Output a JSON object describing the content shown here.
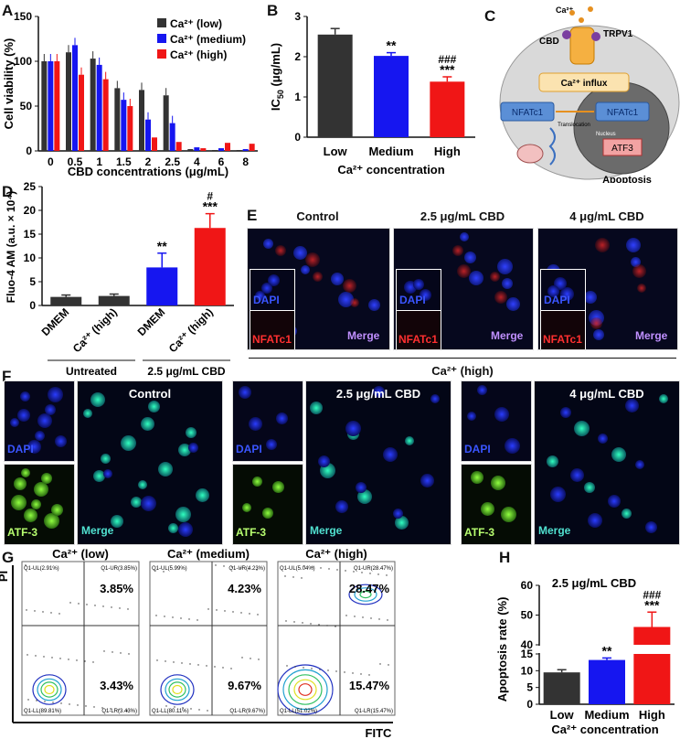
{
  "panel_labels": {
    "A": "A",
    "B": "B",
    "C": "C",
    "D": "D",
    "E": "E",
    "F": "F",
    "G": "G",
    "H": "H"
  },
  "colors": {
    "low": "#333333",
    "medium": "#1616f0",
    "high": "#f01616"
  },
  "chart_data": [
    {
      "id": "A",
      "type": "bar",
      "ylabel": "Cell viability (%)",
      "xlabel": "CBD concentrations (μg/mL)",
      "ylim": [
        0,
        150
      ],
      "yticks": [
        0,
        50,
        100,
        150
      ],
      "categories": [
        "0",
        "0.5",
        "1",
        "1.5",
        "2",
        "2.5",
        "4",
        "6",
        "8"
      ],
      "legend": [
        "Ca²⁺ (low)",
        "Ca²⁺ (medium)",
        "Ca²⁺ (high)"
      ],
      "series": [
        {
          "name": "Ca2+ (low)",
          "values": [
            100,
            110,
            103,
            70,
            68,
            62,
            2,
            1,
            1
          ]
        },
        {
          "name": "Ca2+ (medium)",
          "values": [
            100,
            118,
            96,
            57,
            35,
            31,
            4,
            3,
            2
          ]
        },
        {
          "name": "Ca2+ (high)",
          "values": [
            100,
            85,
            80,
            50,
            15,
            10,
            3,
            9,
            8
          ]
        }
      ]
    },
    {
      "id": "B",
      "type": "bar",
      "ylabel_main": "IC",
      "ylabel_sub": "50",
      "ylabel_unit": " (μg/mL)",
      "xlabel": "Ca²⁺ concentration",
      "ylim": [
        0,
        3
      ],
      "yticks": [
        0,
        1,
        2,
        3
      ],
      "categories": [
        "Low",
        "Medium",
        "High"
      ],
      "values": [
        2.55,
        2.02,
        1.38
      ],
      "errors": [
        0.15,
        0.08,
        0.12
      ],
      "sig": [
        "",
        "**",
        "***"
      ],
      "sig2": [
        "",
        "",
        "###"
      ]
    },
    {
      "id": "D",
      "type": "bar",
      "ylabel": "Fluo-4 AM (a.u. × 10⁴)",
      "ylim": [
        0,
        25
      ],
      "yticks": [
        0,
        5,
        10,
        15,
        20,
        25
      ],
      "categories": [
        "DMEM",
        "Ca²⁺ (high)",
        "DMEM",
        "Ca²⁺ (high)"
      ],
      "values": [
        1.8,
        2.0,
        8.0,
        16.3
      ],
      "errors": [
        0.4,
        0.4,
        3.0,
        3.0
      ],
      "sig": [
        "",
        "",
        "**",
        "***"
      ],
      "sig2": [
        "",
        "",
        "",
        "#"
      ],
      "groups": [
        "Untreated",
        "2.5 μg/mL CBD"
      ]
    },
    {
      "id": "H",
      "type": "bar",
      "ylabel": "Apoptosis rate (%)",
      "xlabel": "Ca²⁺ concentration",
      "annotation": "2.5 μg/mL CBD",
      "yticks": [
        0,
        5,
        10,
        15,
        40,
        50,
        60
      ],
      "categories": [
        "Low",
        "Medium",
        "High"
      ],
      "values": [
        9.5,
        13.2,
        46
      ],
      "errors": [
        0.8,
        0.6,
        5
      ],
      "sig": [
        "",
        "**",
        "***"
      ],
      "sig2": [
        "",
        "",
        "###"
      ]
    }
  ],
  "schematic": {
    "ca": "Ca²⁺",
    "cbd": "CBD",
    "trpv1": "TRPV1",
    "influx": "Ca²⁺ influx",
    "nfatc1_a": "NFATc1",
    "nfatc1_b": "NFATc1",
    "translocation": "Translocation",
    "nucleus": "Nucleus",
    "atf3": "ATF3",
    "apoptosis": "Apoptosis"
  },
  "panel_e": {
    "titles": [
      "Control",
      "2.5 μg/mL CBD",
      "4 μg/mL CBD"
    ],
    "dapi": "DAPI",
    "nfatc1": "NFATc1",
    "merge": "Merge",
    "footer": "Ca²⁺ (high)"
  },
  "panel_f": {
    "titles": [
      "Control",
      "2.5 μg/mL CBD",
      "4 μg/mL CBD"
    ],
    "dapi": "DAPI",
    "atf3": "ATF-3",
    "merge": "Merge"
  },
  "panel_g": {
    "titles": [
      "Ca²⁺ (low)",
      "Ca²⁺ (medium)",
      "Ca²⁺ (high)"
    ],
    "pi": "PI",
    "fitc": "FITC",
    "plots": [
      {
        "ul": "Q1-UL(2.91%)",
        "ur": "Q1-UR(3.85%)",
        "ll": "Q1-LL(89.81%)",
        "lr": "Q1-LR(3.43%)",
        "big_ur": "3.85%",
        "big_lr": "3.43%"
      },
      {
        "ul": "Q1-UL(5.99%)",
        "ur": "Q1-UR(4.23%)",
        "ll": "Q1-LL(80.11%)",
        "lr": "Q1-LR(9.67%)",
        "big_ur": "4.23%",
        "big_lr": "9.67%"
      },
      {
        "ul": "Q1-UL(5.04%)",
        "ur": "Q1-UR(28.47%)",
        "ll": "Q1-LL(51.02%)",
        "lr": "Q1-LR(15.47%)",
        "big_ur": "28.47%",
        "big_lr": "15.47%"
      }
    ]
  },
  "axis_sup": {
    "x10_4": "4",
    "ca_sup": "2+"
  }
}
